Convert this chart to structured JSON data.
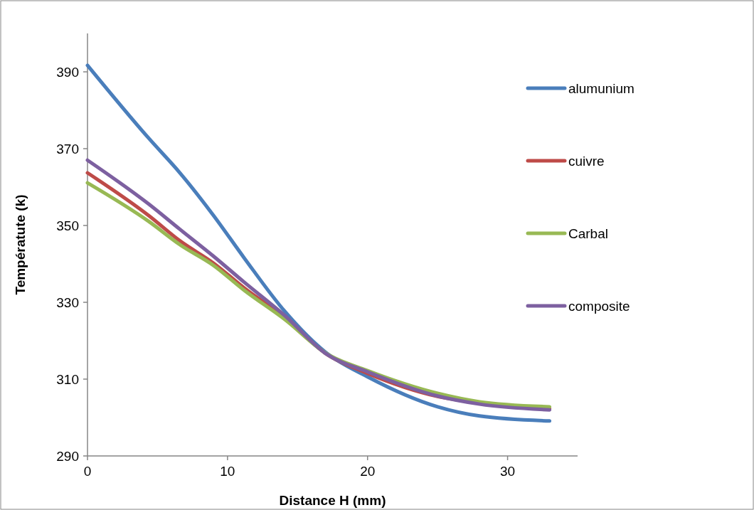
{
  "chart_data": {
    "type": "line",
    "xlabel": "Distance  H (mm)",
    "ylabel": "Températute (k)",
    "x": [
      0,
      4.4,
      6.6,
      9,
      11.2,
      14.1,
      17,
      20,
      25,
      28,
      33
    ],
    "series": [
      {
        "name": "alumunium",
        "color": "#4a7ebb",
        "values": [
          391.7,
          372.6,
          363.7,
          352.6,
          341.5,
          327.6,
          317,
          310.6,
          302.8,
          300.4,
          299.1
        ]
      },
      {
        "name": "cuivre",
        "color": "#be4b48",
        "values": [
          363.7,
          352.5,
          346,
          340.2,
          333.7,
          326,
          316.7,
          311.5,
          305.5,
          303.8,
          302.3
        ]
      },
      {
        "name": "Carbal",
        "color": "#98b954",
        "values": [
          361.1,
          351,
          345,
          339.6,
          333.1,
          325.5,
          316.8,
          312.2,
          306.3,
          304.1,
          302.8
        ]
      },
      {
        "name": "composite",
        "color": "#7d60a0",
        "values": [
          367,
          355.5,
          349,
          342,
          335.2,
          326.5,
          316.7,
          311.9,
          305.6,
          303.5,
          302
        ]
      }
    ],
    "xlim": [
      0,
      35
    ],
    "ylim": [
      290,
      400
    ],
    "xticks": [
      0,
      10,
      20,
      30
    ],
    "yticks": [
      290,
      310,
      330,
      350,
      370,
      390
    ],
    "grid": false,
    "legend": "top right",
    "marker": "none",
    "line_style": "solid"
  }
}
